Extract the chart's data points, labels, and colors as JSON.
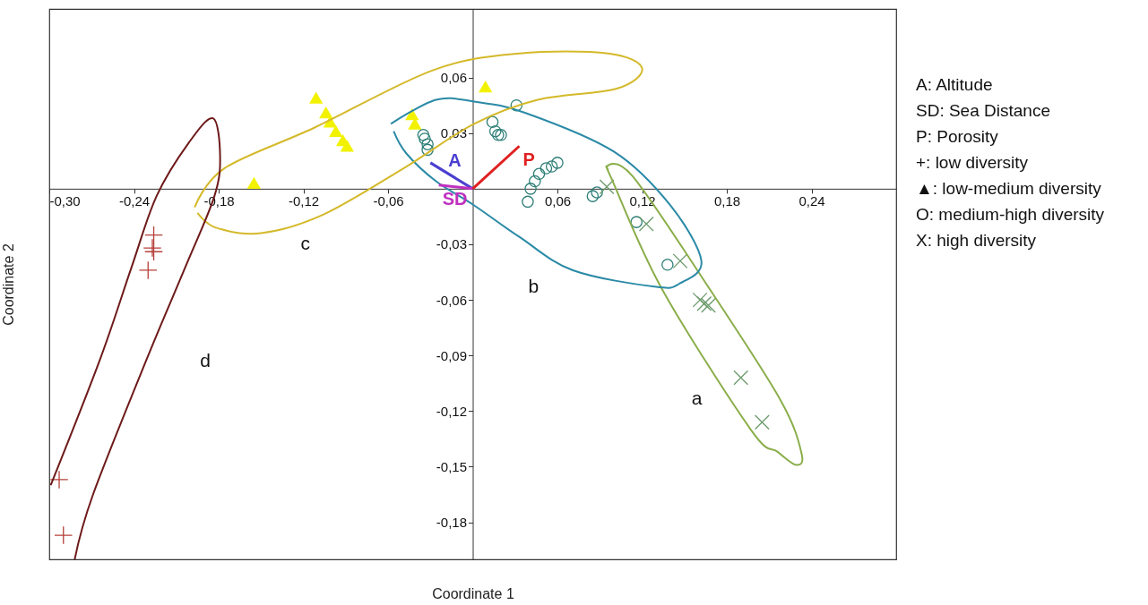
{
  "chart_data": {
    "type": "scatter",
    "xlabel": "Coordinate 1",
    "ylabel": "Coordinate 2",
    "xlim": [
      -0.3,
      0.3
    ],
    "ylim": [
      -0.2,
      0.097
    ],
    "xticks": [
      {
        "value": -0.3,
        "label": "-0,30"
      },
      {
        "value": -0.24,
        "label": "-0,24"
      },
      {
        "value": -0.18,
        "label": "-0,18"
      },
      {
        "value": -0.12,
        "label": "-0,12"
      },
      {
        "value": -0.06,
        "label": "-0,06"
      },
      {
        "value": 0.06,
        "label": "0,06"
      },
      {
        "value": 0.12,
        "label": "0,12"
      },
      {
        "value": 0.18,
        "label": "0,18"
      },
      {
        "value": 0.24,
        "label": "0,24"
      }
    ],
    "yticks": [
      {
        "value": 0.06,
        "label": "0,06"
      },
      {
        "value": 0.03,
        "label": "0,03"
      },
      {
        "value": -0.03,
        "label": "-0,03"
      },
      {
        "value": -0.06,
        "label": "-0,06"
      },
      {
        "value": -0.09,
        "label": "-0,09"
      },
      {
        "value": -0.12,
        "label": "-0,12"
      },
      {
        "value": -0.15,
        "label": "-0,15"
      },
      {
        "value": -0.18,
        "label": "-0,18"
      }
    ],
    "grid": false,
    "series": [
      {
        "marker": "cross",
        "color": "#b5403a",
        "x": [
          -0.226,
          -0.227,
          -0.226,
          -0.23,
          -0.293,
          -0.29
        ],
        "values": [
          -0.025,
          -0.032,
          -0.034,
          -0.044,
          -0.157,
          -0.187
        ]
      },
      {
        "marker": "triangle",
        "color": "#f2f200",
        "x": [
          -0.155,
          -0.111,
          -0.104,
          -0.101,
          -0.097,
          -0.092,
          -0.089,
          -0.043,
          -0.041,
          0.009
        ],
        "values": [
          0.003,
          0.049,
          0.041,
          0.036,
          0.031,
          0.026,
          0.023,
          0.04,
          0.035,
          0.055
        ]
      },
      {
        "marker": "circle",
        "color": "#2f7f78",
        "x": [
          -0.035,
          -0.034,
          -0.032,
          -0.032,
          0.016,
          0.018,
          0.014,
          0.031,
          0.02,
          0.06,
          0.056,
          0.052,
          0.047,
          0.044,
          0.041,
          0.039,
          0.088,
          0.085,
          0.116,
          0.138
        ],
        "values": [
          0.029,
          0.027,
          0.024,
          0.021,
          0.031,
          0.029,
          0.036,
          0.045,
          0.029,
          0.014,
          0.012,
          0.011,
          0.008,
          0.004,
          0.0,
          -0.007,
          -0.002,
          -0.004,
          -0.018,
          -0.041
        ]
      },
      {
        "marker": "x",
        "color": "#6a9a6a",
        "x": [
          0.095,
          0.123,
          0.147,
          0.164,
          0.167,
          0.161,
          0.19,
          0.205
        ],
        "values": [
          0.001,
          -0.019,
          -0.039,
          -0.062,
          -0.063,
          -0.06,
          -0.102,
          -0.126
        ]
      },
      {
        "type": "line",
        "name": "a",
        "line_style": "solid",
        "color": "#8aae4a",
        "x": [
          0.095,
          0.113,
          0.166,
          0.218,
          0.233,
          0.229,
          0.216,
          0.197,
          0.134,
          0.098,
          0.096
        ],
        "values": [
          0.012,
          0.007,
          -0.052,
          -0.114,
          -0.143,
          -0.149,
          -0.142,
          -0.13,
          -0.054,
          0.006,
          0.01
        ]
      },
      {
        "type": "line",
        "name": "b",
        "line_style": "solid",
        "color": "#2a8aa6",
        "x": [
          -0.058,
          -0.026,
          0.001,
          0.037,
          0.1,
          0.14,
          0.162,
          0.147,
          0.13,
          0.071,
          0.033,
          0.001,
          -0.026,
          -0.047,
          -0.056
        ],
        "values": [
          0.035,
          0.048,
          0.047,
          0.041,
          0.02,
          -0.009,
          -0.039,
          -0.051,
          -0.053,
          -0.044,
          -0.026,
          -0.009,
          0.004,
          0.019,
          0.031
        ]
      },
      {
        "type": "line",
        "name": "c",
        "line_style": "solid",
        "color": "#d4b92a",
        "x": [
          -0.197,
          -0.176,
          -0.112,
          -0.028,
          0.033,
          0.096,
          0.12,
          0.102,
          0.046,
          0.001,
          -0.049,
          -0.106,
          -0.15,
          -0.182,
          -0.195
        ],
        "values": [
          -0.01,
          0.011,
          0.033,
          0.064,
          0.073,
          0.073,
          0.065,
          0.054,
          0.048,
          0.035,
          0.011,
          -0.014,
          -0.024,
          -0.021,
          -0.013
        ]
      },
      {
        "type": "line",
        "name": "d",
        "line_style": "solid",
        "color": "#6e1a1a",
        "x": [
          -0.299,
          -0.264,
          -0.242,
          -0.224,
          -0.201,
          -0.184,
          -0.179,
          -0.183,
          -0.204,
          -0.231,
          -0.269,
          -0.282
        ],
        "values": [
          -0.16,
          -0.092,
          -0.043,
          -0.004,
          0.025,
          0.038,
          0.018,
          -0.004,
          -0.043,
          -0.092,
          -0.165,
          -0.2
        ]
      },
      {
        "type": "line",
        "name": "A",
        "line_style": "solid",
        "color": "#4a3fd0",
        "x": [
          0,
          -0.03
        ],
        "values": [
          0,
          0.014
        ]
      },
      {
        "type": "line",
        "name": "SD",
        "line_style": "solid",
        "color": "#c030c0",
        "x": [
          0,
          -0.024
        ],
        "values": [
          0,
          0.002
        ]
      },
      {
        "type": "line",
        "name": "P",
        "line_style": "solid",
        "color": "#e02020",
        "x": [
          0,
          0.033
        ],
        "values": [
          0,
          0.023
        ]
      }
    ],
    "annotations": [
      "A: Altitude",
      "SD: Sea Distance",
      "P: Porosity",
      "+: low diversity",
      "▲: low-medium diversity",
      "O: medium-high diversity",
      "X: high diversity"
    ]
  }
}
